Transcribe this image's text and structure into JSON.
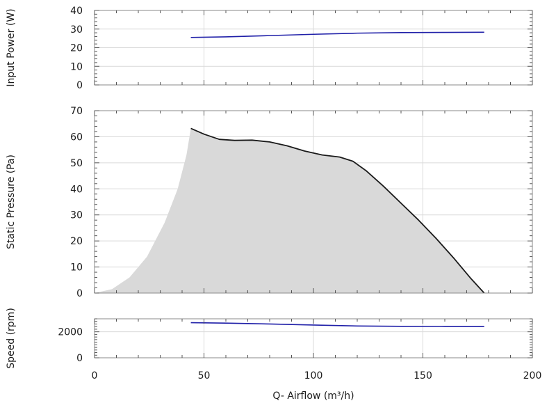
{
  "chart_data": {
    "type": "line",
    "x_label": "Q- Airflow (m³/h)",
    "x_range": [
      0,
      200
    ],
    "x_ticks": [
      0,
      50,
      100,
      150,
      200
    ],
    "grid": true,
    "panels": [
      {
        "name": "power",
        "ylabel": "Input Power (W)",
        "ylim": [
          0,
          40
        ],
        "y_ticks": [
          0,
          10,
          20,
          30,
          40
        ],
        "series": [
          {
            "color": "#1f1fa8",
            "points": [
              [
                44,
                25.5
              ],
              [
                60,
                25.8
              ],
              [
                80,
                26.5
              ],
              [
                100,
                27.2
              ],
              [
                120,
                27.8
              ],
              [
                140,
                28.1
              ],
              [
                160,
                28.2
              ],
              [
                178,
                28.3
              ]
            ]
          }
        ]
      },
      {
        "name": "pressure",
        "ylabel": "Static Pressure (Pa)",
        "ylim": [
          0,
          70
        ],
        "y_ticks": [
          0,
          10,
          20,
          30,
          40,
          50,
          60,
          70
        ],
        "unstable_region": {
          "color": "#d9d9d9",
          "points": [
            [
              0,
              0
            ],
            [
              8,
              1.5
            ],
            [
              16,
              6
            ],
            [
              24,
              14
            ],
            [
              32,
              27
            ],
            [
              38,
              40
            ],
            [
              42,
              53
            ],
            [
              44,
              63.2
            ]
          ]
        },
        "series": [
          {
            "color": "#1a1a1a",
            "points": [
              [
                44,
                63.2
              ],
              [
                50,
                61
              ],
              [
                57,
                59
              ],
              [
                64,
                58.6
              ],
              [
                72,
                58.7
              ],
              [
                80,
                58
              ],
              [
                88,
                56.5
              ],
              [
                96,
                54.5
              ],
              [
                104,
                53
              ],
              [
                112,
                52.2
              ],
              [
                118,
                50.6
              ],
              [
                124,
                47
              ],
              [
                132,
                41
              ],
              [
                140,
                34.5
              ],
              [
                148,
                28
              ],
              [
                156,
                21
              ],
              [
                164,
                13.5
              ],
              [
                172,
                5.5
              ],
              [
                178,
                0
              ]
            ]
          }
        ]
      },
      {
        "name": "speed",
        "ylabel": "Speed (rpm)",
        "ylim": [
          0,
          3000
        ],
        "y_ticks": [
          0,
          2000
        ],
        "series": [
          {
            "color": "#1f1fa8",
            "points": [
              [
                44,
                2700
              ],
              [
                60,
                2670
              ],
              [
                80,
                2600
              ],
              [
                100,
                2520
              ],
              [
                120,
                2450
              ],
              [
                140,
                2420
              ],
              [
                160,
                2410
              ],
              [
                178,
                2400
              ]
            ]
          }
        ]
      }
    ]
  }
}
